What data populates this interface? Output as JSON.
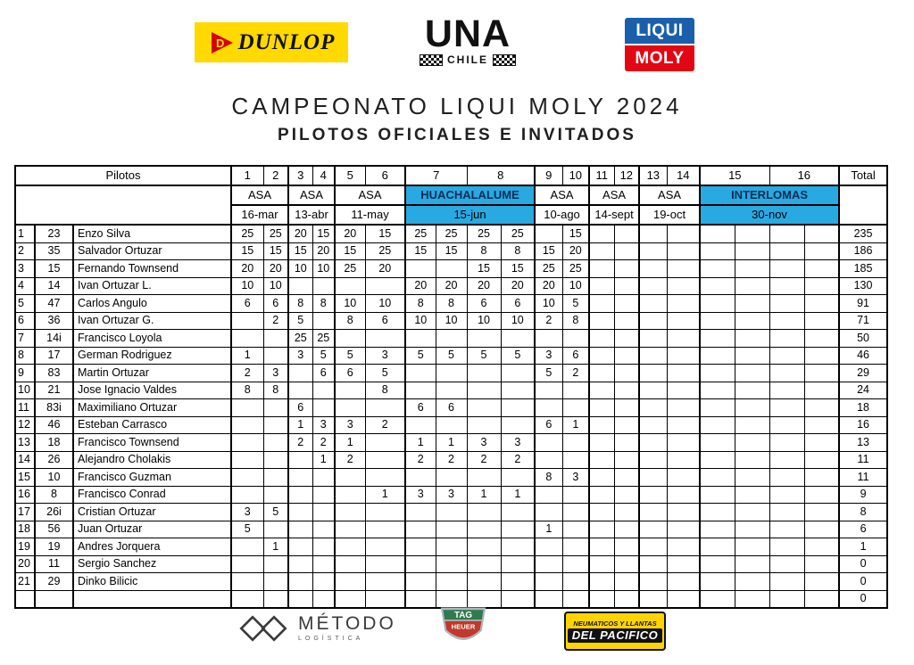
{
  "header": {
    "title": "CAMPEONATO LIQUI MOLY 2024",
    "subtitle": "PILOTOS OFICIALES E INVITADOS"
  },
  "logos": {
    "dunlop": "DUNLOP",
    "una": "UNA",
    "una_sub": "CHILE",
    "liqui": "LIQUI",
    "moly": "MOLY",
    "metodo": "MÉTODO",
    "metodo_sub": "LOGÍSTICA",
    "tag": "TAG",
    "heuer": "HEUER",
    "pacifico_top": "NEUMATICOS Y LLANTAS",
    "pacifico_main": "DEL PACIFICO"
  },
  "colors": {
    "highlight_blue": "#29A9E1",
    "dunlop_yellow": "#FFD900",
    "liqui_blue": "#1A5FAC",
    "liqui_red": "#E30613",
    "tag_green": "#2F7A50",
    "tag_red": "#C0392B",
    "pacifico_yellow": "#FFD400"
  },
  "table": {
    "pilotos_header": "Pilotos",
    "total_header": "Total",
    "round_numbers": [
      "1",
      "2",
      "3",
      "4",
      "5",
      "6",
      "7",
      "8",
      "9",
      "10",
      "11",
      "12",
      "13",
      "14",
      "15",
      "16"
    ],
    "events": [
      {
        "name": "ASA",
        "date": "16-mar",
        "cols": 2,
        "highlight": false
      },
      {
        "name": "ASA",
        "date": "13-abr",
        "cols": 2,
        "highlight": false
      },
      {
        "name": "ASA",
        "date": "11-may",
        "cols": 2,
        "highlight": false
      },
      {
        "name": "HUACHALALUME",
        "date": "15-jun",
        "cols": 4,
        "highlight": true
      },
      {
        "name": "ASA",
        "date": "10-ago",
        "cols": 2,
        "highlight": false
      },
      {
        "name": "ASA",
        "date": "14-sept",
        "cols": 2,
        "highlight": false
      },
      {
        "name": "ASA",
        "date": "19-oct",
        "cols": 2,
        "highlight": false
      },
      {
        "name": "INTERLOMAS",
        "date": "30-nov",
        "cols": 4,
        "highlight": true
      }
    ],
    "rows": [
      {
        "pos": "1",
        "num": "23",
        "name": "Enzo Silva",
        "scores": [
          "25",
          "25",
          "20",
          "15",
          "20",
          "15",
          "25",
          "25",
          "25",
          "25",
          "",
          "15",
          "",
          "",
          "",
          "",
          "",
          "",
          "",
          ""
        ],
        "total": "235"
      },
      {
        "pos": "2",
        "num": "35",
        "name": "Salvador Ortuzar",
        "scores": [
          "15",
          "15",
          "15",
          "20",
          "15",
          "25",
          "15",
          "15",
          "8",
          "8",
          "15",
          "20",
          "",
          "",
          "",
          "",
          "",
          "",
          "",
          ""
        ],
        "total": "186"
      },
      {
        "pos": "3",
        "num": "15",
        "name": "Fernando Townsend",
        "scores": [
          "20",
          "20",
          "10",
          "10",
          "25",
          "20",
          "",
          "",
          "15",
          "15",
          "25",
          "25",
          "",
          "",
          "",
          "",
          "",
          "",
          "",
          ""
        ],
        "total": "185"
      },
      {
        "pos": "4",
        "num": "14",
        "name": "Ivan Ortuzar L.",
        "scores": [
          "10",
          "10",
          "",
          "",
          "",
          "",
          "20",
          "20",
          "20",
          "20",
          "20",
          "10",
          "",
          "",
          "",
          "",
          "",
          "",
          "",
          ""
        ],
        "total": "130"
      },
      {
        "pos": "5",
        "num": "47",
        "name": "Carlos Angulo",
        "scores": [
          "6",
          "6",
          "8",
          "8",
          "10",
          "10",
          "8",
          "8",
          "6",
          "6",
          "10",
          "5",
          "",
          "",
          "",
          "",
          "",
          "",
          "",
          ""
        ],
        "total": "91"
      },
      {
        "pos": "6",
        "num": "36",
        "name": "Ivan Ortuzar G.",
        "scores": [
          "",
          "2",
          "5",
          "",
          "8",
          "6",
          "10",
          "10",
          "10",
          "10",
          "2",
          "8",
          "",
          "",
          "",
          "",
          "",
          "",
          "",
          ""
        ],
        "total": "71"
      },
      {
        "pos": "7",
        "num": "14i",
        "name": "Francisco Loyola",
        "scores": [
          "",
          "",
          "25",
          "25",
          "",
          "",
          "",
          "",
          "",
          "",
          "",
          "",
          "",
          "",
          "",
          "",
          "",
          "",
          "",
          ""
        ],
        "total": "50"
      },
      {
        "pos": "8",
        "num": "17",
        "name": "German Rodriguez",
        "scores": [
          "1",
          "",
          "3",
          "5",
          "5",
          "3",
          "5",
          "5",
          "5",
          "5",
          "3",
          "6",
          "",
          "",
          "",
          "",
          "",
          "",
          "",
          ""
        ],
        "total": "46"
      },
      {
        "pos": "9",
        "num": "83",
        "name": "Martin Ortuzar",
        "scores": [
          "2",
          "3",
          "",
          "6",
          "6",
          "5",
          "",
          "",
          "",
          "",
          "5",
          "2",
          "",
          "",
          "",
          "",
          "",
          "",
          "",
          ""
        ],
        "total": "29"
      },
      {
        "pos": "10",
        "num": "21",
        "name": "Jose Ignacio Valdes",
        "scores": [
          "8",
          "8",
          "",
          "",
          "",
          "8",
          "",
          "",
          "",
          "",
          "",
          "",
          "",
          "",
          "",
          "",
          "",
          "",
          "",
          ""
        ],
        "total": "24"
      },
      {
        "pos": "11",
        "num": "83i",
        "name": "Maximiliano Ortuzar",
        "scores": [
          "",
          "",
          "6",
          "",
          "",
          "",
          "6",
          "6",
          "",
          "",
          "",
          "",
          "",
          "",
          "",
          "",
          "",
          "",
          "",
          ""
        ],
        "total": "18"
      },
      {
        "pos": "12",
        "num": "46",
        "name": "Esteban Carrasco",
        "scores": [
          "",
          "",
          "1",
          "3",
          "3",
          "2",
          "",
          "",
          "",
          "",
          "6",
          "1",
          "",
          "",
          "",
          "",
          "",
          "",
          "",
          ""
        ],
        "total": "16"
      },
      {
        "pos": "13",
        "num": "18",
        "name": "Francisco Townsend",
        "scores": [
          "",
          "",
          "2",
          "2",
          "1",
          "",
          "1",
          "1",
          "3",
          "3",
          "",
          "",
          "",
          "",
          "",
          "",
          "",
          "",
          "",
          ""
        ],
        "total": "13"
      },
      {
        "pos": "14",
        "num": "26",
        "name": "Alejandro Cholakis",
        "scores": [
          "",
          "",
          "",
          "1",
          "2",
          "",
          "2",
          "2",
          "2",
          "2",
          "",
          "",
          "",
          "",
          "",
          "",
          "",
          "",
          "",
          ""
        ],
        "total": "11"
      },
      {
        "pos": "15",
        "num": "10",
        "name": "Francisco Guzman",
        "scores": [
          "",
          "",
          "",
          "",
          "",
          "",
          "",
          "",
          "",
          "",
          "8",
          "3",
          "",
          "",
          "",
          "",
          "",
          "",
          "",
          ""
        ],
        "total": "11"
      },
      {
        "pos": "16",
        "num": "8",
        "name": "Francisco Conrad",
        "scores": [
          "",
          "",
          "",
          "",
          "",
          "1",
          "3",
          "3",
          "1",
          "1",
          "",
          "",
          "",
          "",
          "",
          "",
          "",
          "",
          "",
          ""
        ],
        "total": "9"
      },
      {
        "pos": "17",
        "num": "26i",
        "name": "Cristian Ortuzar",
        "scores": [
          "3",
          "5",
          "",
          "",
          "",
          "",
          "",
          "",
          "",
          "",
          "",
          "",
          "",
          "",
          "",
          "",
          "",
          "",
          "",
          ""
        ],
        "total": "8"
      },
      {
        "pos": "18",
        "num": "56",
        "name": "Juan Ortuzar",
        "scores": [
          "5",
          "",
          "",
          "",
          "",
          "",
          "",
          "",
          "",
          "",
          "1",
          "",
          "",
          "",
          "",
          "",
          "",
          "",
          "",
          ""
        ],
        "total": "6"
      },
      {
        "pos": "19",
        "num": "19",
        "name": "Andres Jorquera",
        "scores": [
          "",
          "1",
          "",
          "",
          "",
          "",
          "",
          "",
          "",
          "",
          "",
          "",
          "",
          "",
          "",
          "",
          "",
          "",
          "",
          ""
        ],
        "total": "1"
      },
      {
        "pos": "20",
        "num": "11",
        "name": "Sergio Sanchez",
        "scores": [
          "",
          "",
          "",
          "",
          "",
          "",
          "",
          "",
          "",
          "",
          "",
          "",
          "",
          "",
          "",
          "",
          "",
          "",
          "",
          ""
        ],
        "total": "0"
      },
      {
        "pos": "21",
        "num": "29",
        "name": "Dinko Bilicic",
        "scores": [
          "",
          "",
          "",
          "",
          "",
          "",
          "",
          "",
          "",
          "",
          "",
          "",
          "",
          "",
          "",
          "",
          "",
          "",
          "",
          ""
        ],
        "total": "0"
      },
      {
        "pos": "",
        "num": "",
        "name": "",
        "scores": [
          "",
          "",
          "",
          "",
          "",
          "",
          "",
          "",
          "",
          "",
          "",
          "",
          "",
          "",
          "",
          "",
          "",
          "",
          "",
          ""
        ],
        "total": "0"
      }
    ]
  }
}
